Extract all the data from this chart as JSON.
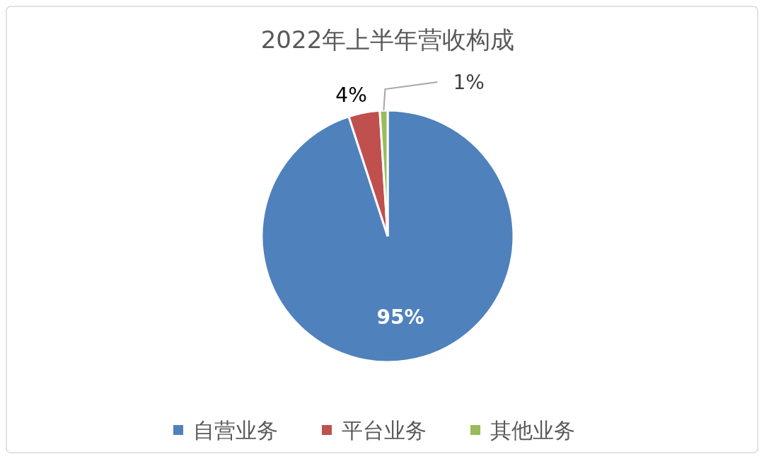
{
  "chart_data": {
    "type": "pie",
    "title": "2022年上半年营收构成",
    "categories": [
      "自营业务",
      "平台业务",
      "其他业务"
    ],
    "values": [
      95,
      4,
      1
    ],
    "colors": [
      "#4f81bd",
      "#c0504d",
      "#9bbb59"
    ],
    "value_labels": [
      "95%",
      "4%",
      "1%"
    ],
    "legend": "bottom"
  }
}
